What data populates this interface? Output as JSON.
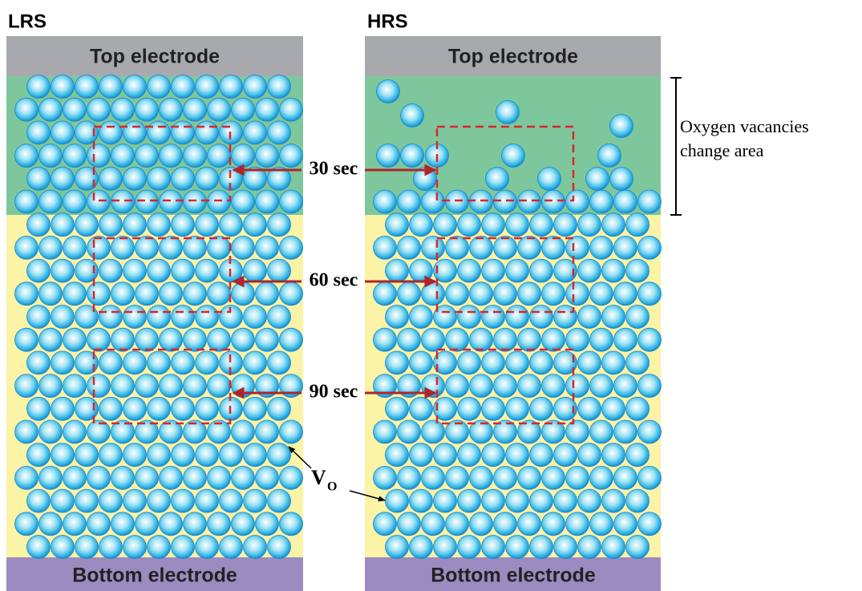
{
  "left": {
    "label": "LRS",
    "top": "Top electrode",
    "bottom": "Bottom electrode"
  },
  "right": {
    "label": "HRS",
    "top": "Top electrode",
    "bottom": "Bottom electrode"
  },
  "times": [
    "30 sec",
    "60 sec",
    "90 sec"
  ],
  "vacancy_label": {
    "symbol": "V",
    "subscript": "O"
  },
  "annotation": [
    "Oxygen vacancies",
    "change area"
  ]
}
